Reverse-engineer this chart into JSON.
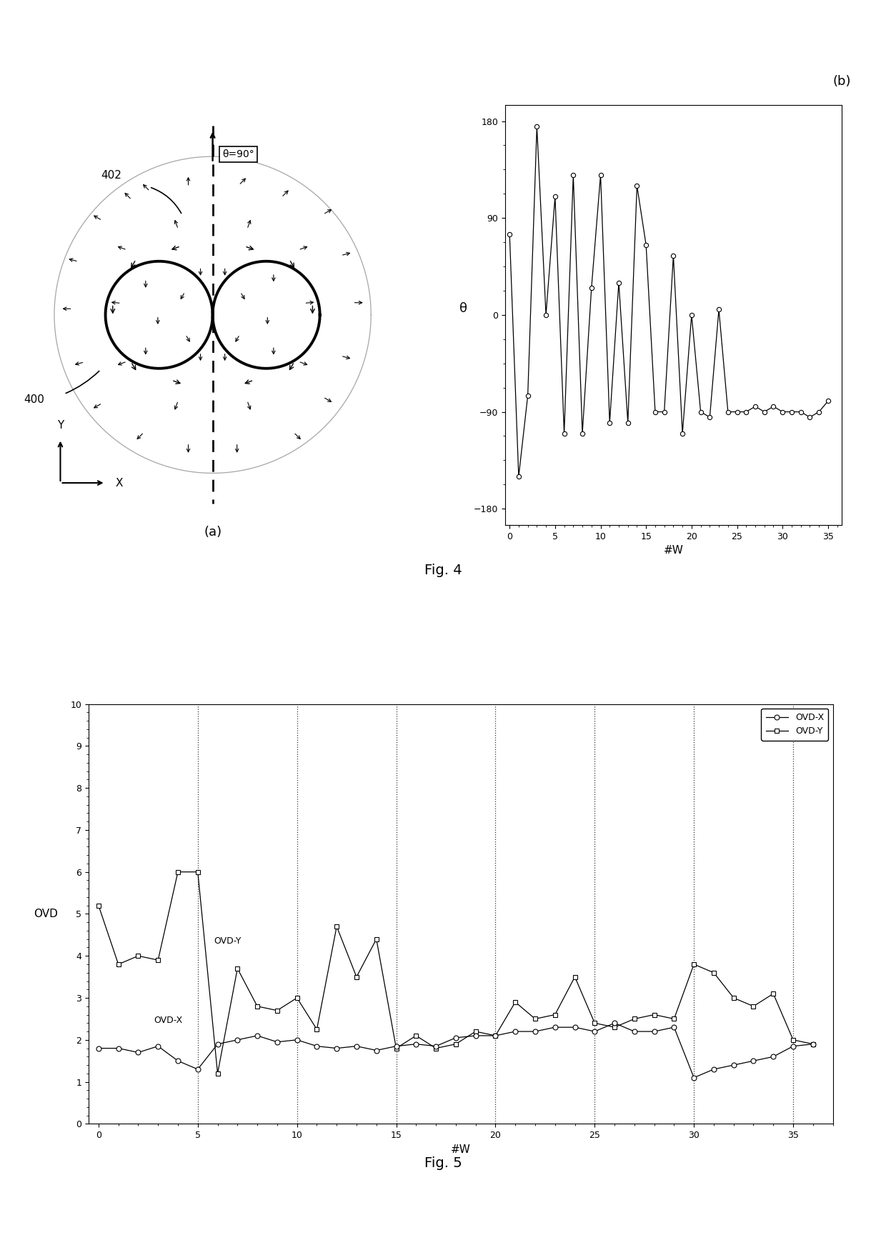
{
  "fig4b_x": [
    0,
    1,
    2,
    3,
    4,
    5,
    6,
    7,
    8,
    9,
    10,
    11,
    12,
    13,
    14,
    15,
    16,
    17,
    18,
    19,
    20,
    21,
    22,
    23,
    24,
    25,
    26,
    27,
    28,
    29,
    30,
    31,
    32,
    33,
    34,
    35
  ],
  "fig4b_y": [
    75,
    -150,
    -75,
    175,
    0,
    110,
    -110,
    130,
    -110,
    25,
    130,
    -100,
    30,
    -100,
    120,
    65,
    -90,
    -90,
    55,
    -110,
    0,
    -90,
    -95,
    5,
    -90,
    -90,
    -90,
    -85,
    -90,
    -85,
    -90,
    -90,
    -90,
    -95,
    -90,
    -80
  ],
  "fig5_ovdx": [
    1.8,
    1.8,
    1.7,
    1.85,
    1.5,
    1.3,
    1.9,
    2.0,
    2.1,
    1.95,
    2.0,
    1.85,
    1.8,
    1.85,
    1.75,
    1.85,
    1.9,
    1.85,
    2.05,
    2.1,
    2.1,
    2.2,
    2.2,
    2.3,
    2.3,
    2.2,
    2.4,
    2.2,
    2.2,
    2.3,
    1.1,
    1.3,
    1.4,
    1.5,
    1.6,
    1.85,
    1.9
  ],
  "fig5_ovdy": [
    5.2,
    3.8,
    4.0,
    3.9,
    6.0,
    6.0,
    1.2,
    3.7,
    2.8,
    2.7,
    3.0,
    2.25,
    4.7,
    3.5,
    4.4,
    1.8,
    2.1,
    1.8,
    1.9,
    2.2,
    2.1,
    2.9,
    2.5,
    2.6,
    3.5,
    2.4,
    2.3,
    2.5,
    2.6,
    2.5,
    3.8,
    3.6,
    3.0,
    2.8,
    3.1,
    2.0,
    1.9
  ],
  "fig5_x": [
    0,
    1,
    2,
    3,
    4,
    5,
    6,
    7,
    8,
    9,
    10,
    11,
    12,
    13,
    14,
    15,
    16,
    17,
    18,
    19,
    20,
    21,
    22,
    23,
    24,
    25,
    26,
    27,
    28,
    29,
    30,
    31,
    32,
    33,
    34,
    35,
    36
  ],
  "fig5_vlines": [
    5,
    10,
    15,
    20,
    25,
    30,
    35
  ],
  "fig4b_yticks": [
    -180,
    -90,
    0,
    90,
    180
  ],
  "fig4b_xticks": [
    0,
    5,
    10,
    15,
    20,
    25,
    30,
    35
  ],
  "fig5_yticks": [
    0,
    1,
    2,
    3,
    4,
    5,
    6,
    7,
    8,
    9,
    10
  ],
  "fig5_xticks": [
    0,
    5,
    10,
    15,
    20,
    25,
    30,
    35
  ],
  "fig4_label": "Fig. 4",
  "fig5_label": "Fig. 5",
  "sub_a_label": "(a)",
  "sub_b_label": "(b)",
  "xlabel_b": "#W",
  "ylabel_b": "θ",
  "xlabel_5": "#W",
  "ylabel_5": "OVD",
  "legend_ovdx": "OVD-X",
  "legend_ovdy": "OVD-Y",
  "annot_ovdx": "OVD-X",
  "annot_ovdy": "OVD-Y",
  "theta_label": "θ=90°",
  "label_402": "402",
  "label_400": "400"
}
